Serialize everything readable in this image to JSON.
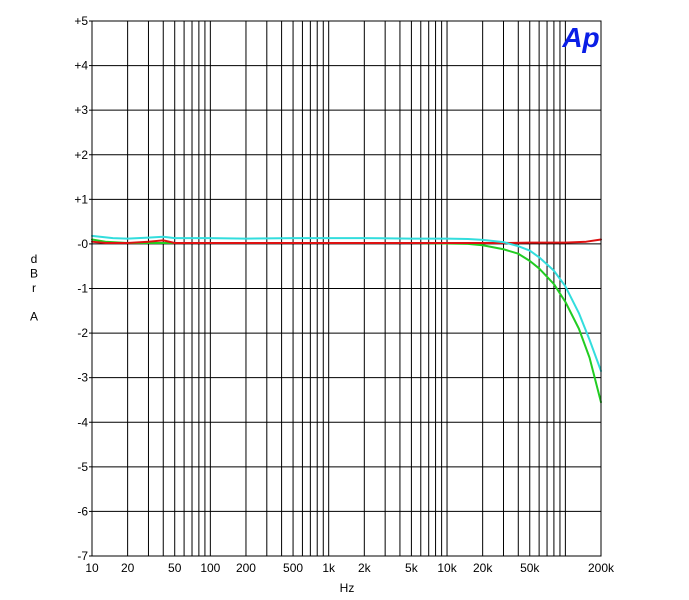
{
  "chart_data": {
    "type": "line",
    "title": "",
    "xlabel": "Hz",
    "ylabel": "dBr A",
    "xscale": "log",
    "xlim": [
      10,
      200000
    ],
    "ylim": [
      -7,
      5
    ],
    "grid": true,
    "x_ticks": [
      {
        "value": 10,
        "label": "10"
      },
      {
        "value": 20,
        "label": "20"
      },
      {
        "value": 50,
        "label": "50"
      },
      {
        "value": 100,
        "label": "100"
      },
      {
        "value": 200,
        "label": "200"
      },
      {
        "value": 500,
        "label": "500"
      },
      {
        "value": 1000,
        "label": "1k"
      },
      {
        "value": 2000,
        "label": "2k"
      },
      {
        "value": 5000,
        "label": "5k"
      },
      {
        "value": 10000,
        "label": "10k"
      },
      {
        "value": 20000,
        "label": "20k"
      },
      {
        "value": 50000,
        "label": "50k"
      },
      {
        "value": 200000,
        "label": "200k"
      }
    ],
    "y_ticks": [
      {
        "value": 5,
        "label": "+5"
      },
      {
        "value": 4,
        "label": "+4"
      },
      {
        "value": 3,
        "label": "+3"
      },
      {
        "value": 2,
        "label": "+2"
      },
      {
        "value": 1,
        "label": "+1"
      },
      {
        "value": 0,
        "label": "-0"
      },
      {
        "value": -1,
        "label": "-1"
      },
      {
        "value": -2,
        "label": "-2"
      },
      {
        "value": -3,
        "label": "-3"
      },
      {
        "value": -4,
        "label": "-4"
      },
      {
        "value": -5,
        "label": "-5"
      },
      {
        "value": -6,
        "label": "-6"
      },
      {
        "value": -7,
        "label": "-7"
      }
    ],
    "series": [
      {
        "color": "#dd1111",
        "x": [
          10,
          13,
          20,
          30,
          40,
          50,
          100,
          200,
          500,
          1000,
          2000,
          5000,
          10000,
          20000,
          30000,
          50000,
          100000,
          150000,
          200000
        ],
        "y": [
          0.05,
          0.02,
          0.02,
          0.05,
          0.08,
          0.02,
          0.02,
          0.02,
          0.02,
          0.02,
          0.02,
          0.02,
          0.02,
          0.02,
          0.02,
          0.03,
          0.03,
          0.05,
          0.1
        ]
      },
      {
        "color": "#33dddd",
        "x": [
          10,
          15,
          20,
          30,
          40,
          50,
          100,
          200,
          500,
          1000,
          2000,
          5000,
          10000,
          15000,
          20000,
          30000,
          40000,
          50000,
          60000,
          80000,
          100000,
          130000,
          160000,
          200000
        ],
        "y": [
          0.18,
          0.13,
          0.12,
          0.14,
          0.16,
          0.13,
          0.13,
          0.12,
          0.13,
          0.13,
          0.13,
          0.12,
          0.12,
          0.11,
          0.09,
          0.04,
          -0.05,
          -0.15,
          -0.3,
          -0.6,
          -0.95,
          -1.55,
          -2.15,
          -2.85
        ]
      },
      {
        "color": "#22cc22",
        "x": [
          10,
          13,
          20,
          30,
          50,
          100,
          200,
          500,
          1000,
          2000,
          5000,
          10000,
          15000,
          20000,
          30000,
          40000,
          50000,
          60000,
          80000,
          100000,
          130000,
          160000,
          200000
        ],
        "y": [
          0.1,
          0.05,
          0.02,
          0.02,
          0.02,
          0.02,
          0.02,
          0.02,
          0.02,
          0.02,
          0.02,
          0.01,
          0.0,
          -0.03,
          -0.12,
          -0.22,
          -0.38,
          -0.55,
          -0.9,
          -1.3,
          -1.9,
          -2.55,
          -3.55
        ]
      }
    ]
  },
  "logo": {
    "text": "Ap",
    "color": "#0a1ee6"
  }
}
